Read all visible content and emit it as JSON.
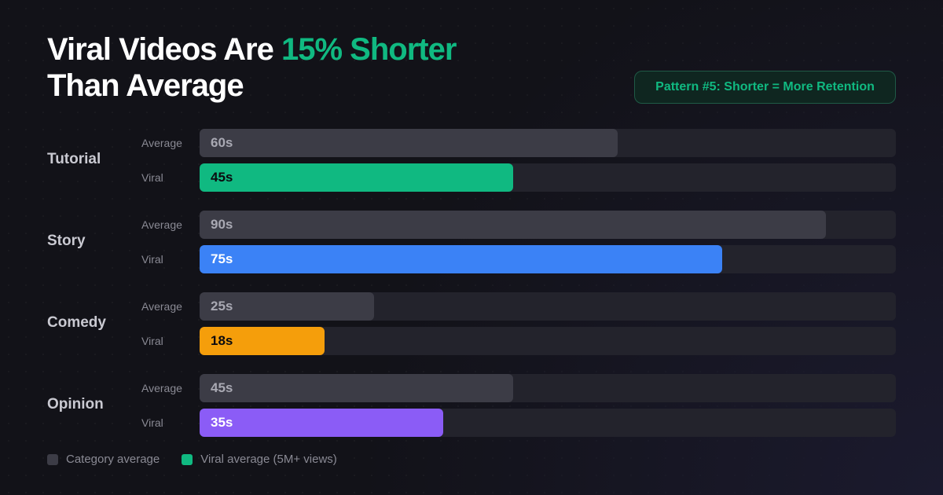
{
  "header": {
    "title_part1": "Viral Videos Are ",
    "title_accent": "15% Shorter",
    "title_part2": "Than Average",
    "badge": "Pattern #5: Shorter = More Retention"
  },
  "colors": {
    "accent": "#10b981",
    "average_bar": "#3c3c46",
    "track": "#23232c"
  },
  "chart_data": {
    "type": "bar",
    "orientation": "horizontal",
    "unit": "s",
    "xlim": [
      0,
      100
    ],
    "row_labels": [
      "Average",
      "Viral"
    ],
    "categories": [
      {
        "name": "Tutorial",
        "average": 60,
        "viral": 45,
        "viral_label": "45s",
        "average_label": "60s",
        "viral_color": "#10b981",
        "viral_text_color": "#0b0b0f"
      },
      {
        "name": "Story",
        "average": 90,
        "viral": 75,
        "viral_label": "75s",
        "average_label": "90s",
        "viral_color": "#3b82f6",
        "viral_text_color": "#ffffff"
      },
      {
        "name": "Comedy",
        "average": 25,
        "viral": 18,
        "viral_label": "18s",
        "average_label": "25s",
        "viral_color": "#f59e0b",
        "viral_text_color": "#0b0b0f"
      },
      {
        "name": "Opinion",
        "average": 45,
        "viral": 35,
        "viral_label": "35s",
        "average_label": "45s",
        "viral_color": "#8b5cf6",
        "viral_text_color": "#ffffff"
      }
    ],
    "legend": [
      {
        "label": "Category average",
        "color": "#3c3c46"
      },
      {
        "label": "Viral average (5M+ views)",
        "color": "#10b981"
      }
    ]
  }
}
